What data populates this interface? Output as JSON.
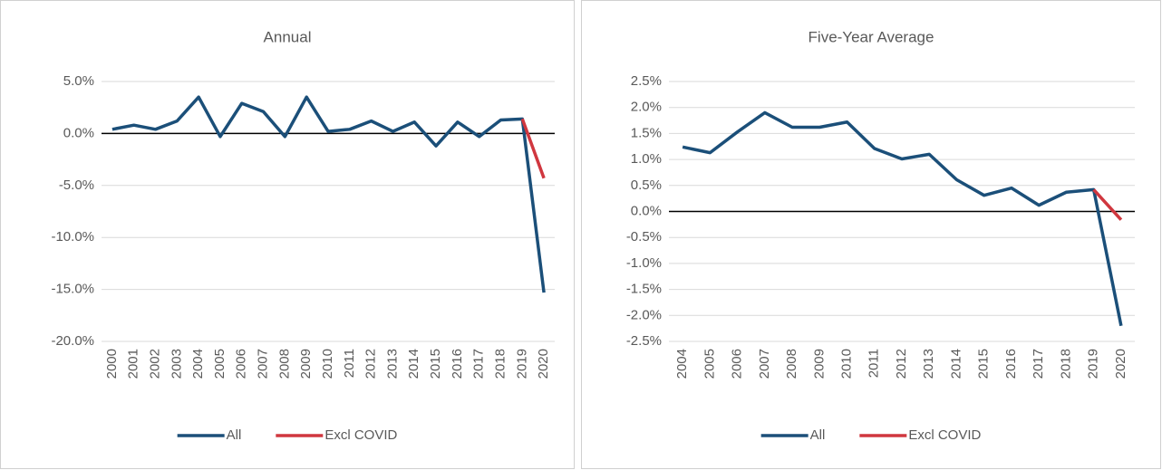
{
  "chart_data": [
    {
      "type": "line",
      "title": "Annual",
      "categories": [
        "2000",
        "2001",
        "2002",
        "2003",
        "2004",
        "2005",
        "2006",
        "2007",
        "2008",
        "2009",
        "2010",
        "2011",
        "2012",
        "2013",
        "2014",
        "2015",
        "2016",
        "2017",
        "2018",
        "2019",
        "2020"
      ],
      "series": [
        {
          "name": "All",
          "color": "#1b4f79",
          "values": [
            0.4,
            0.8,
            0.4,
            1.2,
            3.5,
            -0.3,
            2.9,
            2.1,
            -0.3,
            3.5,
            0.2,
            0.4,
            1.2,
            0.2,
            1.1,
            -1.2,
            1.1,
            -0.3,
            1.3,
            1.4,
            -15.3
          ]
        },
        {
          "name": "Excl COVID",
          "color": "#d0373f",
          "values": [
            null,
            null,
            null,
            null,
            null,
            null,
            null,
            null,
            null,
            null,
            null,
            null,
            null,
            null,
            null,
            null,
            null,
            null,
            null,
            1.4,
            -4.3
          ]
        }
      ],
      "ylim": [
        -20,
        5
      ],
      "yticks": [
        {
          "value": -20,
          "label": "-20.0%"
        },
        {
          "value": -15,
          "label": "-15.0%"
        },
        {
          "value": -10,
          "label": "-10.0%"
        },
        {
          "value": -5,
          "label": "-5.0%"
        },
        {
          "value": 0,
          "label": "0.0%"
        },
        {
          "value": 5,
          "label": "5.0%"
        }
      ],
      "grid": true,
      "legend": "bottom"
    },
    {
      "type": "line",
      "title": "Five-Year Average",
      "categories": [
        "2004",
        "2005",
        "2006",
        "2007",
        "2008",
        "2009",
        "2010",
        "2011",
        "2012",
        "2013",
        "2014",
        "2015",
        "2016",
        "2017",
        "2018",
        "2019",
        "2020"
      ],
      "series": [
        {
          "name": "All",
          "color": "#1b4f79",
          "values": [
            1.24,
            1.13,
            1.53,
            1.9,
            1.62,
            1.62,
            1.72,
            1.21,
            1.01,
            1.1,
            0.61,
            0.31,
            0.45,
            0.12,
            0.37,
            0.42,
            -2.2
          ]
        },
        {
          "name": "Excl COVID",
          "color": "#d0373f",
          "values": [
            null,
            null,
            null,
            null,
            null,
            null,
            null,
            null,
            null,
            null,
            null,
            null,
            null,
            null,
            null,
            0.42,
            -0.16
          ]
        }
      ],
      "ylim": [
        -2.5,
        2.5
      ],
      "yticks": [
        {
          "value": -2.5,
          "label": "-2.5%"
        },
        {
          "value": -2,
          "label": "-2.0%"
        },
        {
          "value": -1.5,
          "label": "-1.5%"
        },
        {
          "value": -1,
          "label": "-1.0%"
        },
        {
          "value": -0.5,
          "label": "-0.5%"
        },
        {
          "value": 0,
          "label": "0.0%"
        },
        {
          "value": 0.5,
          "label": "0.5%"
        },
        {
          "value": 1,
          "label": "1.0%"
        },
        {
          "value": 1.5,
          "label": "1.5%"
        },
        {
          "value": 2,
          "label": "2.0%"
        },
        {
          "value": 2.5,
          "label": "2.5%"
        }
      ],
      "grid": true,
      "legend": "bottom"
    }
  ]
}
